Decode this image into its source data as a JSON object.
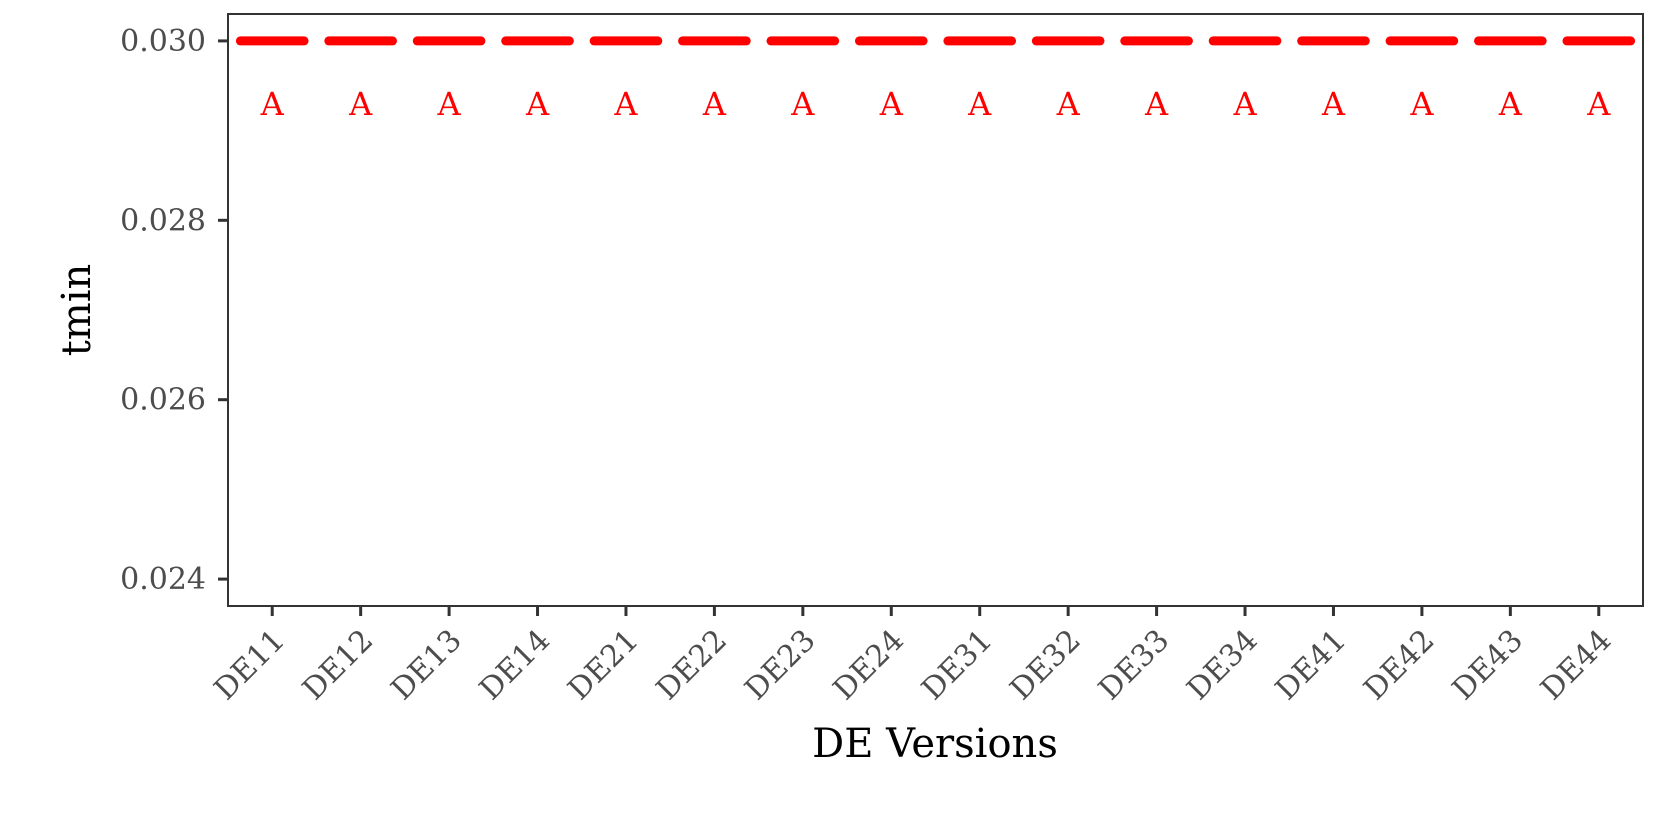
{
  "chart_data": {
    "type": "bar",
    "categories": [
      "DE11",
      "DE12",
      "DE13",
      "DE14",
      "DE21",
      "DE22",
      "DE23",
      "DE24",
      "DE31",
      "DE32",
      "DE33",
      "DE34",
      "DE41",
      "DE42",
      "DE43",
      "DE44"
    ],
    "values": [
      0.03,
      0.03,
      0.03,
      0.03,
      0.03,
      0.03,
      0.03,
      0.03,
      0.03,
      0.03,
      0.03,
      0.03,
      0.03,
      0.03,
      0.03,
      0.03
    ],
    "group_letters": [
      "A",
      "A",
      "A",
      "A",
      "A",
      "A",
      "A",
      "A",
      "A",
      "A",
      "A",
      "A",
      "A",
      "A",
      "A",
      "A"
    ],
    "xlabel": "DE Versions",
    "ylabel": "tmin",
    "ylim": [
      0.0237,
      0.0303
    ],
    "yticks": [
      0.024,
      0.026,
      0.028,
      0.03
    ],
    "ytick_labels": [
      "0.024",
      "0.026",
      "0.028",
      "0.030"
    ],
    "grid": false,
    "legend": "none",
    "mark_color": "#ff0000"
  }
}
